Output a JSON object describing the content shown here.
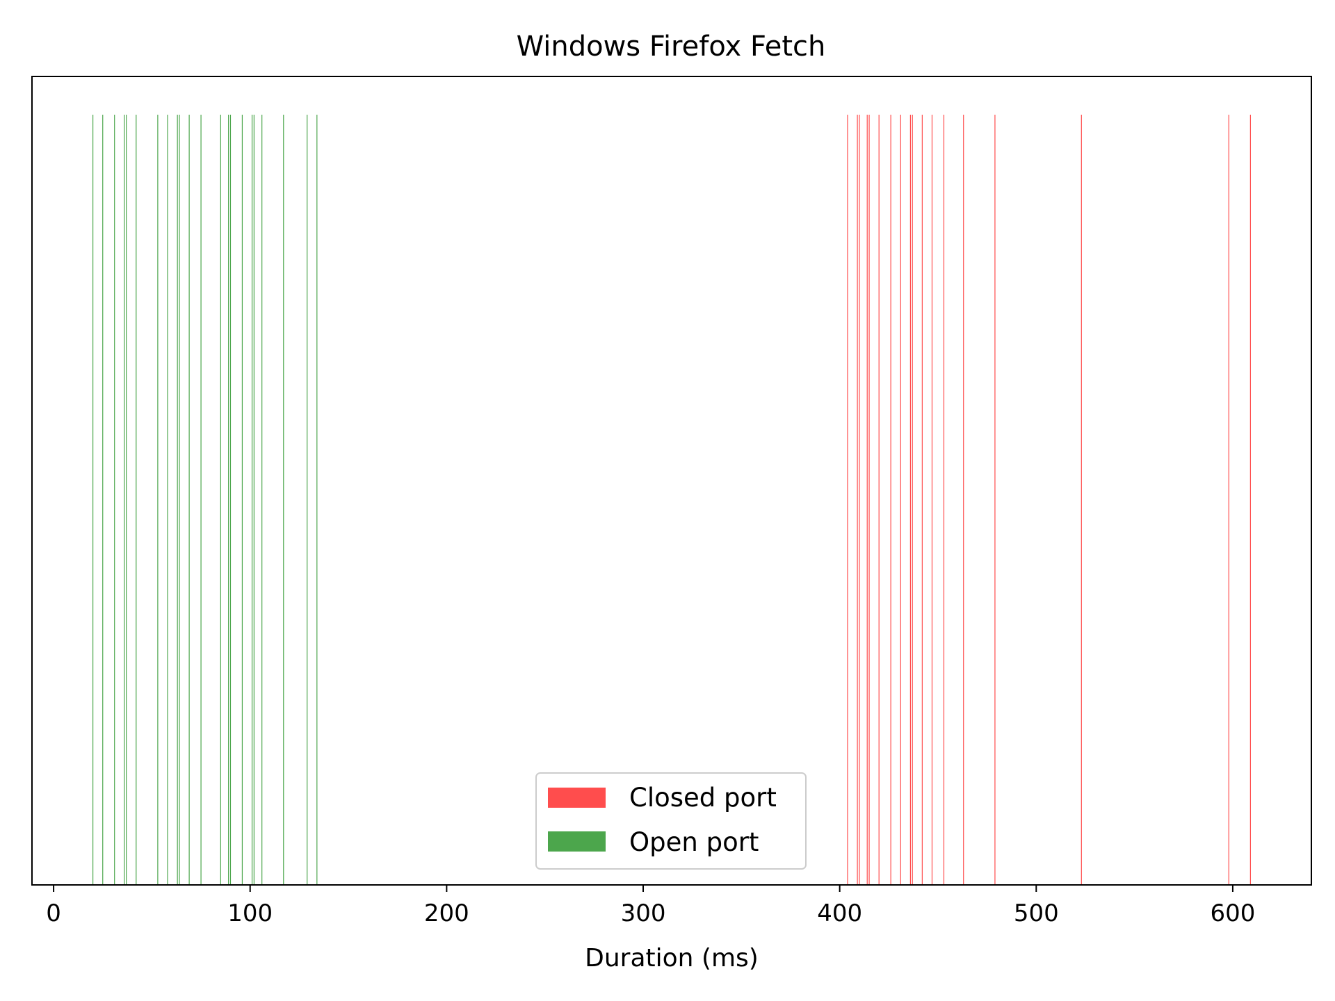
{
  "chart_data": {
    "type": "eventplot",
    "title": "Windows Firefox Fetch",
    "xlabel": "Duration (ms)",
    "ylabel": "",
    "xlim": [
      -11,
      640
    ],
    "xticks": [
      0,
      100,
      200,
      300,
      400,
      500,
      600
    ],
    "yticks_visible": false,
    "grid": false,
    "legend_position": "lower-center",
    "series": [
      {
        "name": "Closed port",
        "color": "#ff4d4d",
        "values": [
          404,
          409,
          410,
          414,
          415,
          420,
          426,
          431,
          436,
          437,
          442,
          447,
          453,
          463,
          479,
          523,
          598,
          609
        ]
      },
      {
        "name": "Open port",
        "color": "#4ca64c",
        "values": [
          20,
          25,
          31,
          36,
          37,
          42,
          53,
          58,
          63,
          64,
          69,
          75,
          85,
          89,
          90,
          96,
          101,
          102,
          106,
          117,
          129,
          134
        ]
      }
    ]
  }
}
